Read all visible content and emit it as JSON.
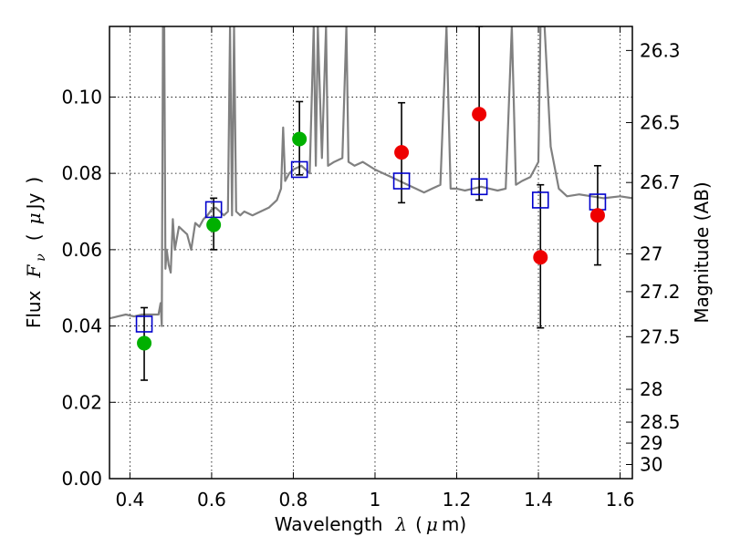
{
  "chart_data": {
    "type": "scatter",
    "xlabel": {
      "main": "Wavelength",
      "symbol": "λ",
      "paren_open": "(",
      "mu": "μ",
      "unit": "m)"
    },
    "ylabel": {
      "main": "Flux",
      "symbol": "F",
      "subscript": "ν",
      "paren_open": "(",
      "mu": "μ",
      "unit": "Jy",
      "paren_close": ")"
    },
    "y2label": "Magnitude (AB)",
    "xlim": [
      0.35,
      1.63
    ],
    "ylim": [
      0.0,
      0.1185
    ],
    "xticks": [
      0.4,
      0.6,
      0.8,
      1.0,
      1.2,
      1.4,
      1.6
    ],
    "xtick_labels": [
      "0.4",
      "0.6",
      "0.8",
      "1",
      "1.2",
      "1.4",
      "1.6"
    ],
    "yticks": [
      0.0,
      0.02,
      0.04,
      0.06,
      0.08,
      0.1
    ],
    "ytick_labels": [
      "0.00",
      "0.02",
      "0.04",
      "0.06",
      "0.08",
      "0.10"
    ],
    "y2ticks": [
      {
        "label": "26.3",
        "flux": 0.1122
      },
      {
        "label": "26.5",
        "flux": 0.0933
      },
      {
        "label": "26.7",
        "flux": 0.0776
      },
      {
        "label": "27",
        "flux": 0.0589
      },
      {
        "label": "27.2",
        "flux": 0.049
      },
      {
        "label": "27.5",
        "flux": 0.0372
      },
      {
        "label": "28",
        "flux": 0.0234
      },
      {
        "label": "28.5",
        "flux": 0.0148
      },
      {
        "label": "29",
        "flux": 0.0093
      },
      {
        "label": "30",
        "flux": 0.0037
      }
    ],
    "grid": true,
    "series": [
      {
        "kind": "line",
        "color": "#808080",
        "points": [
          [
            0.35,
            0.042
          ],
          [
            0.37,
            0.0425
          ],
          [
            0.39,
            0.043
          ],
          [
            0.41,
            0.0425
          ],
          [
            0.43,
            0.043
          ],
          [
            0.45,
            0.043
          ],
          [
            0.47,
            0.043
          ],
          [
            0.475,
            0.046
          ],
          [
            0.478,
            0.04
          ],
          [
            0.481,
            0.1185
          ],
          [
            0.484,
            0.1185
          ],
          [
            0.487,
            0.055
          ],
          [
            0.49,
            0.06
          ],
          [
            0.495,
            0.056
          ],
          [
            0.5,
            0.054
          ],
          [
            0.505,
            0.068
          ],
          [
            0.51,
            0.06
          ],
          [
            0.52,
            0.066
          ],
          [
            0.53,
            0.065
          ],
          [
            0.54,
            0.064
          ],
          [
            0.55,
            0.06
          ],
          [
            0.56,
            0.067
          ],
          [
            0.57,
            0.066
          ],
          [
            0.58,
            0.068
          ],
          [
            0.59,
            0.069
          ],
          [
            0.6,
            0.0705
          ],
          [
            0.61,
            0.071
          ],
          [
            0.62,
            0.07
          ],
          [
            0.63,
            0.069
          ],
          [
            0.64,
            0.07
          ],
          [
            0.645,
            0.1185
          ],
          [
            0.65,
            0.069
          ],
          [
            0.655,
            0.1185
          ],
          [
            0.66,
            0.07
          ],
          [
            0.67,
            0.069
          ],
          [
            0.68,
            0.07
          ],
          [
            0.7,
            0.069
          ],
          [
            0.72,
            0.07
          ],
          [
            0.74,
            0.071
          ],
          [
            0.76,
            0.073
          ],
          [
            0.77,
            0.076
          ],
          [
            0.775,
            0.092
          ],
          [
            0.78,
            0.078
          ],
          [
            0.79,
            0.08
          ],
          [
            0.8,
            0.081
          ],
          [
            0.82,
            0.082
          ],
          [
            0.84,
            0.08
          ],
          [
            0.85,
            0.1185
          ],
          [
            0.855,
            0.082
          ],
          [
            0.86,
            0.1185
          ],
          [
            0.87,
            0.084
          ],
          [
            0.88,
            0.1185
          ],
          [
            0.885,
            0.082
          ],
          [
            0.9,
            0.083
          ],
          [
            0.92,
            0.084
          ],
          [
            0.93,
            0.1185
          ],
          [
            0.935,
            0.083
          ],
          [
            0.95,
            0.082
          ],
          [
            0.97,
            0.083
          ],
          [
            1.0,
            0.081
          ],
          [
            1.02,
            0.08
          ],
          [
            1.04,
            0.079
          ],
          [
            1.06,
            0.078
          ],
          [
            1.08,
            0.077
          ],
          [
            1.1,
            0.076
          ],
          [
            1.12,
            0.075
          ],
          [
            1.14,
            0.076
          ],
          [
            1.16,
            0.077
          ],
          [
            1.175,
            0.1185
          ],
          [
            1.185,
            0.076
          ],
          [
            1.2,
            0.076
          ],
          [
            1.22,
            0.0755
          ],
          [
            1.24,
            0.076
          ],
          [
            1.26,
            0.0765
          ],
          [
            1.28,
            0.076
          ],
          [
            1.3,
            0.0755
          ],
          [
            1.32,
            0.076
          ],
          [
            1.335,
            0.1185
          ],
          [
            1.345,
            0.077
          ],
          [
            1.36,
            0.078
          ],
          [
            1.38,
            0.079
          ],
          [
            1.39,
            0.081
          ],
          [
            1.4,
            0.083
          ],
          [
            1.405,
            0.1185
          ],
          [
            1.415,
            0.1185
          ],
          [
            1.43,
            0.087
          ],
          [
            1.45,
            0.076
          ],
          [
            1.47,
            0.074
          ],
          [
            1.5,
            0.0745
          ],
          [
            1.53,
            0.074
          ],
          [
            1.56,
            0.0735
          ],
          [
            1.6,
            0.074
          ],
          [
            1.63,
            0.0735
          ]
        ]
      },
      {
        "kind": "open-square",
        "color": "#0000cc",
        "points": [
          [
            0.435,
            0.0405
          ],
          [
            0.605,
            0.0705
          ],
          [
            0.815,
            0.081
          ],
          [
            1.065,
            0.078
          ],
          [
            1.255,
            0.0765
          ],
          [
            1.405,
            0.073
          ],
          [
            1.545,
            0.0725
          ]
        ]
      },
      {
        "kind": "filled-circle",
        "color": "#00b000",
        "points": [
          [
            0.435,
            0.0355
          ],
          [
            0.605,
            0.0665
          ],
          [
            0.815,
            0.089
          ]
        ]
      },
      {
        "kind": "filled-circle",
        "color": "#ee0000",
        "points": [
          [
            1.065,
            0.0855
          ],
          [
            1.255,
            0.0955
          ],
          [
            1.405,
            0.058
          ],
          [
            1.545,
            0.069
          ]
        ]
      },
      {
        "kind": "errorbar",
        "color": "#000000",
        "points": [
          {
            "x": 0.435,
            "y": 0.0355,
            "lo": 0.0258,
            "hi": 0.0448
          },
          {
            "x": 0.605,
            "y": 0.0665,
            "lo": 0.06,
            "hi": 0.0735
          },
          {
            "x": 0.815,
            "y": 0.089,
            "lo": 0.0796,
            "hi": 0.0988
          },
          {
            "x": 1.065,
            "y": 0.0855,
            "lo": 0.0723,
            "hi": 0.0985
          },
          {
            "x": 1.255,
            "y": 0.0955,
            "lo": 0.073,
            "hi": 0.1185
          },
          {
            "x": 1.405,
            "y": 0.058,
            "lo": 0.0395,
            "hi": 0.077
          },
          {
            "x": 1.545,
            "y": 0.069,
            "lo": 0.056,
            "hi": 0.082
          }
        ]
      }
    ]
  }
}
